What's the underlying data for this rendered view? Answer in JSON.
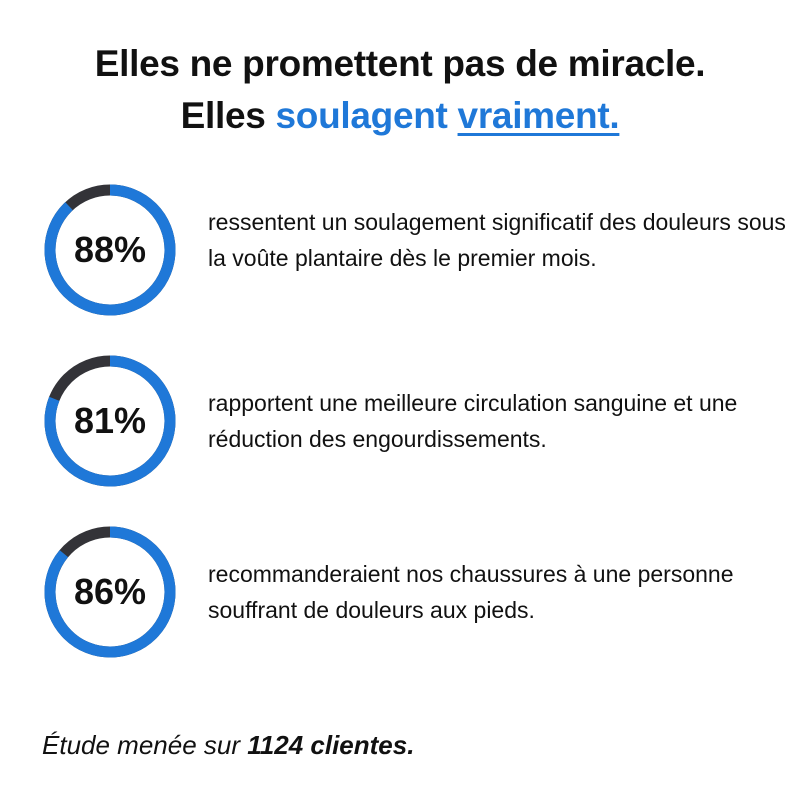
{
  "headline": {
    "line1": "Elles ne promettent pas de miracle.",
    "line2_prefix": "Elles",
    "line2_blue": "soulagent",
    "line2_underlined": "vraiment."
  },
  "colors": {
    "accent": "#1f78d8",
    "track": "#333338",
    "text": "#111111"
  },
  "stats": [
    {
      "value": 88,
      "label": "88%",
      "text": "ressentent un soulagement significatif des douleurs sous la voûte plantaire dès le premier mois."
    },
    {
      "value": 81,
      "label": "81%",
      "text": "rapportent une meilleure circulation sanguine et une réduction des engourdissements."
    },
    {
      "value": 86,
      "label": "86%",
      "text": "recommanderaient nos chaussures à une personne souffrant de douleurs aux pieds."
    }
  ],
  "footer": {
    "prefix": "Étude menée sur",
    "bold": "1124 clientes."
  }
}
